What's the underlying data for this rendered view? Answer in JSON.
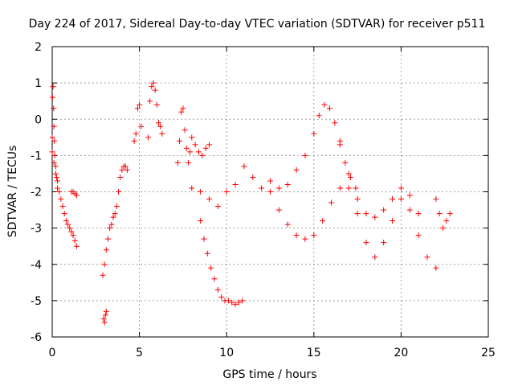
{
  "chart_data": {
    "type": "scatter",
    "title": "Day 224 of 2017, Sidereal Day-to-day VTEC variation (SDTVAR) for receiver p511",
    "xlabel": "GPS time / hours",
    "ylabel": "SDTVAR / TECUs",
    "xlim": [
      0,
      25
    ],
    "ylim": [
      -6,
      2
    ],
    "xticks": [
      0,
      5,
      10,
      15,
      20,
      25
    ],
    "yticks": [
      -6,
      -5,
      -4,
      -3,
      -2,
      -1,
      0,
      1,
      2
    ],
    "grid": true,
    "marker": "+",
    "color": "#ff0000",
    "series": [
      {
        "name": "main",
        "x": [
          0.0,
          0.1,
          0.2,
          0.3,
          0.4,
          0.5,
          0.6,
          0.7,
          0.8,
          0.9,
          1.0,
          1.1,
          1.2,
          1.3,
          1.4
        ],
        "y": [
          -0.9,
          -1.2,
          -1.5,
          -1.7,
          -2.0,
          -2.2,
          -2.4,
          -2.6,
          -2.8,
          -2.9,
          -3.0,
          -3.1,
          -3.2,
          -3.35,
          -3.5
        ]
      },
      {
        "name": "start-spike",
        "x": [
          0.0,
          0.02,
          0.05,
          0.08,
          0.1,
          0.12,
          0.15,
          0.2,
          0.25,
          0.3
        ],
        "y": [
          -0.5,
          0.6,
          0.9,
          0.3,
          -0.2,
          -0.6,
          -1.0,
          -1.3,
          -1.6,
          -1.9
        ]
      },
      {
        "name": "short-a",
        "x": [
          1.1,
          1.2,
          1.3,
          1.4
        ],
        "y": [
          -2.0,
          -2.0,
          -2.05,
          -2.1
        ]
      },
      {
        "name": "rise-3h",
        "x": [
          2.9,
          3.0,
          3.1,
          3.2,
          3.3,
          3.4,
          3.5,
          3.6,
          3.7,
          3.8,
          3.9,
          4.0,
          4.1,
          4.2,
          4.3
        ],
        "y": [
          -4.3,
          -4.0,
          -3.6,
          -3.3,
          -3.0,
          -2.9,
          -2.7,
          -2.6,
          -2.4,
          -2.0,
          -1.6,
          -1.4,
          -1.3,
          -1.3,
          -1.4
        ]
      },
      {
        "name": "low-3h",
        "x": [
          2.95,
          3.0,
          3.05,
          3.1
        ],
        "y": [
          -5.5,
          -5.6,
          -5.4,
          -5.3
        ]
      },
      {
        "name": "hump-5h",
        "x": [
          4.7,
          4.8,
          4.9,
          5.0,
          5.1,
          5.5,
          5.6,
          5.7,
          5.8,
          5.9,
          6.0,
          6.1,
          6.2,
          6.3
        ],
        "y": [
          -0.6,
          -0.4,
          0.3,
          0.4,
          -0.2,
          -0.5,
          0.5,
          0.9,
          1.0,
          0.8,
          0.4,
          -0.1,
          -0.2,
          -0.4
        ]
      },
      {
        "name": "cluster-7-8h",
        "x": [
          7.2,
          7.3,
          7.4,
          7.5,
          7.6,
          7.7,
          7.8,
          7.9,
          8.0,
          8.2,
          8.4,
          8.6,
          8.8,
          9.0
        ],
        "y": [
          -1.2,
          -0.6,
          0.2,
          0.3,
          -0.3,
          -0.8,
          -1.2,
          -0.9,
          -0.5,
          -0.7,
          -0.9,
          -1.0,
          -0.8,
          -0.7
        ]
      },
      {
        "name": "descent-8-11h",
        "x": [
          8.5,
          8.7,
          8.9,
          9.1,
          9.3,
          9.5,
          9.7,
          9.9,
          10.1,
          10.3,
          10.5,
          10.7,
          10.9
        ],
        "y": [
          -2.8,
          -3.3,
          -3.7,
          -4.1,
          -4.4,
          -4.7,
          -4.9,
          -5.0,
          -5.0,
          -5.05,
          -5.1,
          -5.05,
          -5.0
        ]
      },
      {
        "name": "mid-9-12h",
        "x": [
          8.0,
          8.5,
          9.0,
          9.5,
          10.0,
          10.5,
          11.0,
          11.5,
          12.0
        ],
        "y": [
          -1.9,
          -2.0,
          -2.2,
          -2.4,
          -2.0,
          -1.8,
          -1.3,
          -1.6,
          -1.9
        ]
      },
      {
        "name": "loop-upper",
        "x": [
          12.5,
          13.0,
          13.5,
          14.0,
          14.5,
          15.0,
          15.3,
          15.6,
          15.9,
          16.2,
          16.5,
          16.8,
          17.1,
          17.4
        ],
        "y": [
          -1.7,
          -1.9,
          -1.8,
          -1.4,
          -1.0,
          -0.4,
          0.1,
          0.4,
          0.3,
          -0.1,
          -0.6,
          -1.2,
          -1.6,
          -1.9
        ]
      },
      {
        "name": "loop-lower",
        "x": [
          12.5,
          13.0,
          13.5,
          14.0,
          14.5,
          15.0,
          15.5,
          16.0,
          16.5,
          17.0,
          17.5,
          18.0,
          18.5,
          19.0,
          19.5,
          20.0,
          20.5,
          21.0,
          21.5,
          22.0
        ],
        "y": [
          -2.0,
          -2.5,
          -2.9,
          -3.2,
          -3.3,
          -3.2,
          -2.8,
          -2.3,
          -1.9,
          -1.9,
          -2.6,
          -3.4,
          -3.8,
          -3.4,
          -2.8,
          -2.2,
          -2.5,
          -3.2,
          -3.8,
          -4.1
        ]
      },
      {
        "name": "mid-band",
        "x": [
          16.5,
          17.0,
          17.5,
          18.0,
          18.5,
          19.0,
          19.5,
          20.0,
          20.5,
          21.0
        ],
        "y": [
          -0.7,
          -1.5,
          -2.2,
          -2.6,
          -2.7,
          -2.5,
          -2.2,
          -1.9,
          -2.1,
          -2.6
        ]
      },
      {
        "name": "end-22-23h",
        "x": [
          22.0,
          22.2,
          22.4,
          22.6,
          22.8
        ],
        "y": [
          -2.2,
          -2.6,
          -3.0,
          -2.8,
          -2.6
        ]
      }
    ]
  }
}
